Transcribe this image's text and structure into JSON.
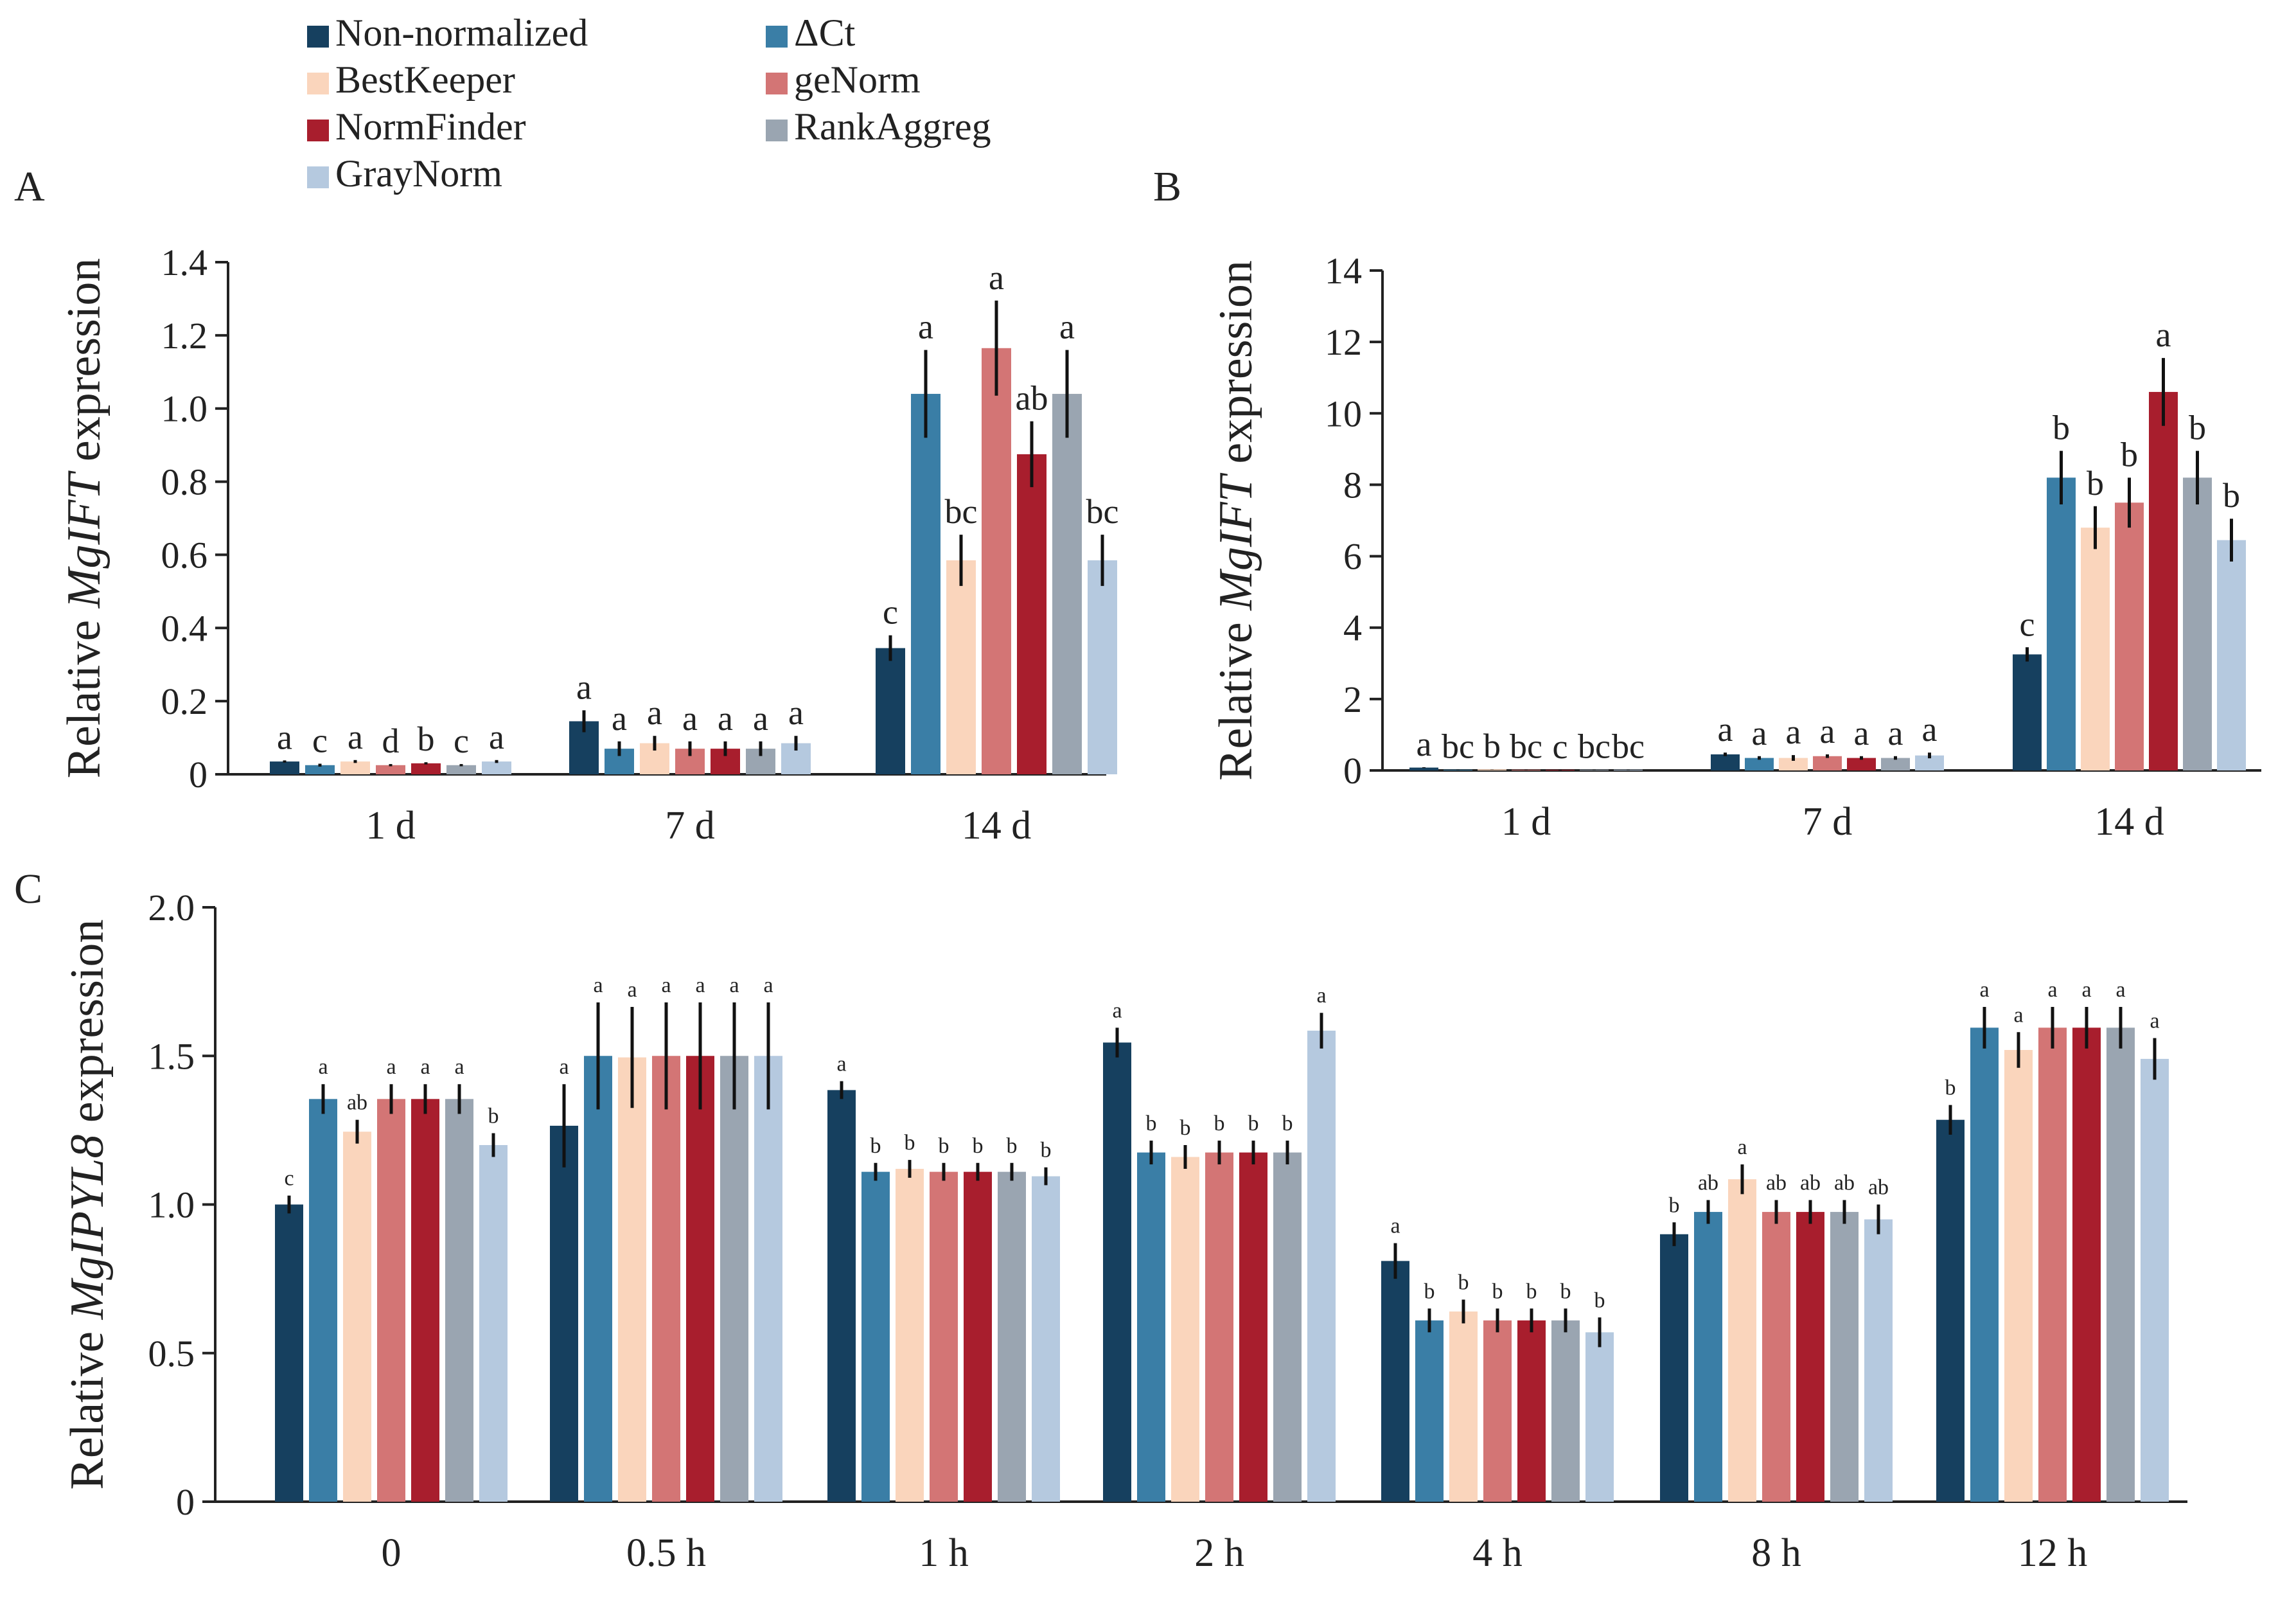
{
  "legend": {
    "items": [
      {
        "key": "non_normalized",
        "label": "Non-normalized",
        "color": "#16405f"
      },
      {
        "key": "delta_ct",
        "label": "ΔCt",
        "color": "#3a7ea6"
      },
      {
        "key": "bestkeeper",
        "label": "BestKeeper",
        "color": "#fad5bc"
      },
      {
        "key": "genorm",
        "label": "geNorm",
        "color": "#d37575"
      },
      {
        "key": "normfinder",
        "label": "NormFinder",
        "color": "#a81e2d"
      },
      {
        "key": "rankaggreg",
        "label": "RankAggreg",
        "color": "#9aa5b1"
      },
      {
        "key": "graynorm",
        "label": "GrayNorm",
        "color": "#b5c9df"
      }
    ]
  },
  "chart_data": [
    {
      "panel": "A",
      "type": "bar",
      "ylabel_prefix": "Relative ",
      "ylabel_gene": "MgIFT",
      "ylabel_suffix": " expression",
      "ylim": [
        0,
        1.4
      ],
      "yticks": [
        "0",
        "0.2",
        "0.4",
        "0.6",
        "0.8",
        "1.0",
        "1.2",
        "1.4"
      ],
      "categories": [
        "1 d",
        "7 d",
        "14 d"
      ],
      "series": [
        {
          "name": "Non-normalized",
          "values": [
            0.035,
            0.145,
            0.345
          ],
          "errors": [
            0.003,
            0.03,
            0.035
          ],
          "letters": [
            "a",
            "a",
            "c"
          ]
        },
        {
          "name": "ΔCt",
          "values": [
            0.025,
            0.07,
            1.04
          ],
          "errors": [
            0.004,
            0.02,
            0.12
          ],
          "letters": [
            "c",
            "a",
            "a"
          ]
        },
        {
          "name": "BestKeeper",
          "values": [
            0.035,
            0.085,
            0.585
          ],
          "errors": [
            0.004,
            0.02,
            0.07
          ],
          "letters": [
            "a",
            "a",
            "bc"
          ]
        },
        {
          "name": "geNorm",
          "values": [
            0.025,
            0.07,
            1.165
          ],
          "errors": [
            0.003,
            0.02,
            0.13
          ],
          "letters": [
            "d",
            "a",
            "a"
          ]
        },
        {
          "name": "NormFinder",
          "values": [
            0.03,
            0.07,
            0.875
          ],
          "errors": [
            0.003,
            0.02,
            0.09
          ],
          "letters": [
            "b",
            "a",
            "ab"
          ]
        },
        {
          "name": "RankAggreg",
          "values": [
            0.025,
            0.07,
            1.04
          ],
          "errors": [
            0.003,
            0.02,
            0.12
          ],
          "letters": [
            "c",
            "a",
            "a"
          ]
        },
        {
          "name": "GrayNorm",
          "values": [
            0.035,
            0.085,
            0.585
          ],
          "errors": [
            0.004,
            0.02,
            0.07
          ],
          "letters": [
            "a",
            "a",
            "bc"
          ]
        }
      ]
    },
    {
      "panel": "B",
      "type": "bar",
      "ylabel_prefix": "Relative ",
      "ylabel_gene": "MgIFT",
      "ylabel_suffix": " expression",
      "ylim": [
        0,
        14
      ],
      "yticks": [
        "0",
        "2",
        "4",
        "6",
        "8",
        "10",
        "12",
        "14"
      ],
      "categories": [
        "1 d",
        "7 d",
        "14 d"
      ],
      "series": [
        {
          "name": "Non-normalized",
          "values": [
            0.08,
            0.45,
            3.25
          ],
          "errors": [
            0.01,
            0.05,
            0.2
          ],
          "letters": [
            "a",
            "a",
            "c"
          ]
        },
        {
          "name": "ΔCt",
          "values": [
            0.02,
            0.35,
            8.2
          ],
          "errors": [
            0.005,
            0.05,
            0.75
          ],
          "letters": [
            "bc",
            "a",
            "b"
          ]
        },
        {
          "name": "BestKeeper",
          "values": [
            0.03,
            0.35,
            6.8
          ],
          "errors": [
            0.005,
            0.08,
            0.6
          ],
          "letters": [
            "b",
            "a",
            "b"
          ]
        },
        {
          "name": "geNorm",
          "values": [
            0.02,
            0.4,
            7.5
          ],
          "errors": [
            0.005,
            0.05,
            0.7
          ],
          "letters": [
            "bc",
            "a",
            "b"
          ]
        },
        {
          "name": "NormFinder",
          "values": [
            0.01,
            0.35,
            10.6
          ],
          "errors": [
            0.005,
            0.05,
            0.95
          ],
          "letters": [
            "c",
            "a",
            "a"
          ]
        },
        {
          "name": "RankAggreg",
          "values": [
            0.02,
            0.35,
            8.2
          ],
          "errors": [
            0.005,
            0.05,
            0.75
          ],
          "letters": [
            "bc",
            "a",
            "b"
          ]
        },
        {
          "name": "GrayNorm",
          "values": [
            0.02,
            0.42,
            6.45
          ],
          "errors": [
            0.005,
            0.08,
            0.6
          ],
          "letters": [
            "bc",
            "a",
            "b"
          ]
        }
      ]
    },
    {
      "panel": "C",
      "type": "bar",
      "ylabel_prefix": "Relative ",
      "ylabel_gene": "MgIPYL8",
      "ylabel_suffix": " expression",
      "ylim": [
        0,
        2.0
      ],
      "yticks": [
        "0",
        "0.5",
        "1.0",
        "1.5",
        "2.0"
      ],
      "categories": [
        "0",
        "0.5 h",
        "1 h",
        "2 h",
        "4 h",
        "8 h",
        "12 h"
      ],
      "series": [
        {
          "name": "Non-normalized",
          "values": [
            1.0,
            1.265,
            1.385,
            1.545,
            0.81,
            0.9,
            1.285
          ],
          "errors": [
            0.03,
            0.14,
            0.03,
            0.05,
            0.06,
            0.04,
            0.05
          ],
          "letters": [
            "c",
            "a",
            "a",
            "a",
            "a",
            "b",
            "b"
          ]
        },
        {
          "name": "ΔCt",
          "values": [
            1.355,
            1.5,
            1.11,
            1.175,
            0.61,
            0.975,
            1.595
          ],
          "errors": [
            0.05,
            0.18,
            0.03,
            0.04,
            0.04,
            0.04,
            0.07
          ],
          "letters": [
            "a",
            "a",
            "b",
            "b",
            "b",
            "ab",
            "a"
          ]
        },
        {
          "name": "BestKeeper",
          "values": [
            1.245,
            1.495,
            1.12,
            1.16,
            0.64,
            1.085,
            1.52
          ],
          "errors": [
            0.04,
            0.17,
            0.03,
            0.04,
            0.04,
            0.05,
            0.06
          ],
          "letters": [
            "ab",
            "a",
            "b",
            "b",
            "b",
            "a",
            "a"
          ]
        },
        {
          "name": "geNorm",
          "values": [
            1.355,
            1.5,
            1.11,
            1.175,
            0.61,
            0.975,
            1.595
          ],
          "errors": [
            0.05,
            0.18,
            0.03,
            0.04,
            0.04,
            0.04,
            0.07
          ],
          "letters": [
            "a",
            "a",
            "b",
            "b",
            "b",
            "ab",
            "a"
          ]
        },
        {
          "name": "NormFinder",
          "values": [
            1.355,
            1.5,
            1.11,
            1.175,
            0.61,
            0.975,
            1.595
          ],
          "errors": [
            0.05,
            0.18,
            0.03,
            0.04,
            0.04,
            0.04,
            0.07
          ],
          "letters": [
            "a",
            "a",
            "b",
            "b",
            "b",
            "ab",
            "a"
          ]
        },
        {
          "name": "RankAggreg",
          "values": [
            1.355,
            1.5,
            1.11,
            1.175,
            0.61,
            0.975,
            1.595
          ],
          "errors": [
            0.05,
            0.18,
            0.03,
            0.04,
            0.04,
            0.04,
            0.07
          ],
          "letters": [
            "a",
            "a",
            "b",
            "b",
            "b",
            "ab",
            "a"
          ]
        },
        {
          "name": "GrayNorm",
          "values": [
            1.2,
            1.5,
            1.095,
            1.585,
            0.57,
            0.95,
            1.49
          ],
          "errors": [
            0.04,
            0.18,
            0.03,
            0.06,
            0.05,
            0.05,
            0.07
          ],
          "letters": [
            "b",
            "a",
            "b",
            "a",
            "b",
            "ab",
            "a"
          ]
        }
      ]
    }
  ]
}
